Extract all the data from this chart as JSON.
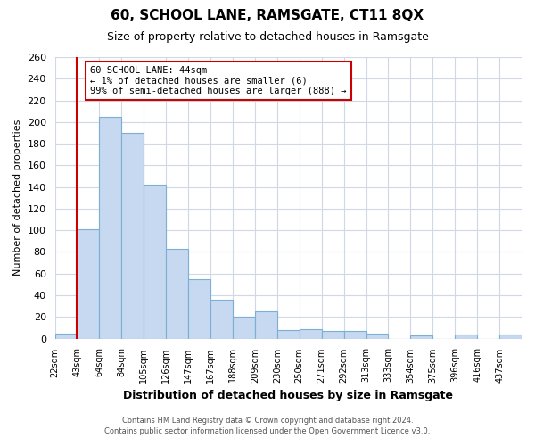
{
  "title": "60, SCHOOL LANE, RAMSGATE, CT11 8QX",
  "subtitle": "Size of property relative to detached houses in Ramsgate",
  "xlabel": "Distribution of detached houses by size in Ramsgate",
  "ylabel": "Number of detached properties",
  "bin_labels": [
    "22sqm",
    "43sqm",
    "64sqm",
    "84sqm",
    "105sqm",
    "126sqm",
    "147sqm",
    "167sqm",
    "188sqm",
    "209sqm",
    "230sqm",
    "250sqm",
    "271sqm",
    "292sqm",
    "313sqm",
    "333sqm",
    "354sqm",
    "375sqm",
    "396sqm",
    "416sqm",
    "437sqm"
  ],
  "bar_heights": [
    5,
    101,
    205,
    190,
    142,
    83,
    55,
    36,
    20,
    25,
    8,
    9,
    7,
    7,
    5,
    0,
    3,
    0,
    4,
    0,
    4
  ],
  "bar_color": "#c6d9f0",
  "bar_edge_color": "#7bafd4",
  "highlight_line_color": "#cc0000",
  "ylim": [
    0,
    260
  ],
  "yticks": [
    0,
    20,
    40,
    60,
    80,
    100,
    120,
    140,
    160,
    180,
    200,
    220,
    240,
    260
  ],
  "annotation_title": "60 SCHOOL LANE: 44sqm",
  "annotation_line1": "← 1% of detached houses are smaller (6)",
  "annotation_line2": "99% of semi-detached houses are larger (888) →",
  "annotation_box_color": "#ffffff",
  "annotation_box_edge": "#cc0000",
  "footer1": "Contains HM Land Registry data © Crown copyright and database right 2024.",
  "footer2": "Contains public sector information licensed under the Open Government Licence v3.0.",
  "plot_bg_color": "#ffffff",
  "fig_bg_color": "#ffffff",
  "grid_color": "#d0d8e8"
}
